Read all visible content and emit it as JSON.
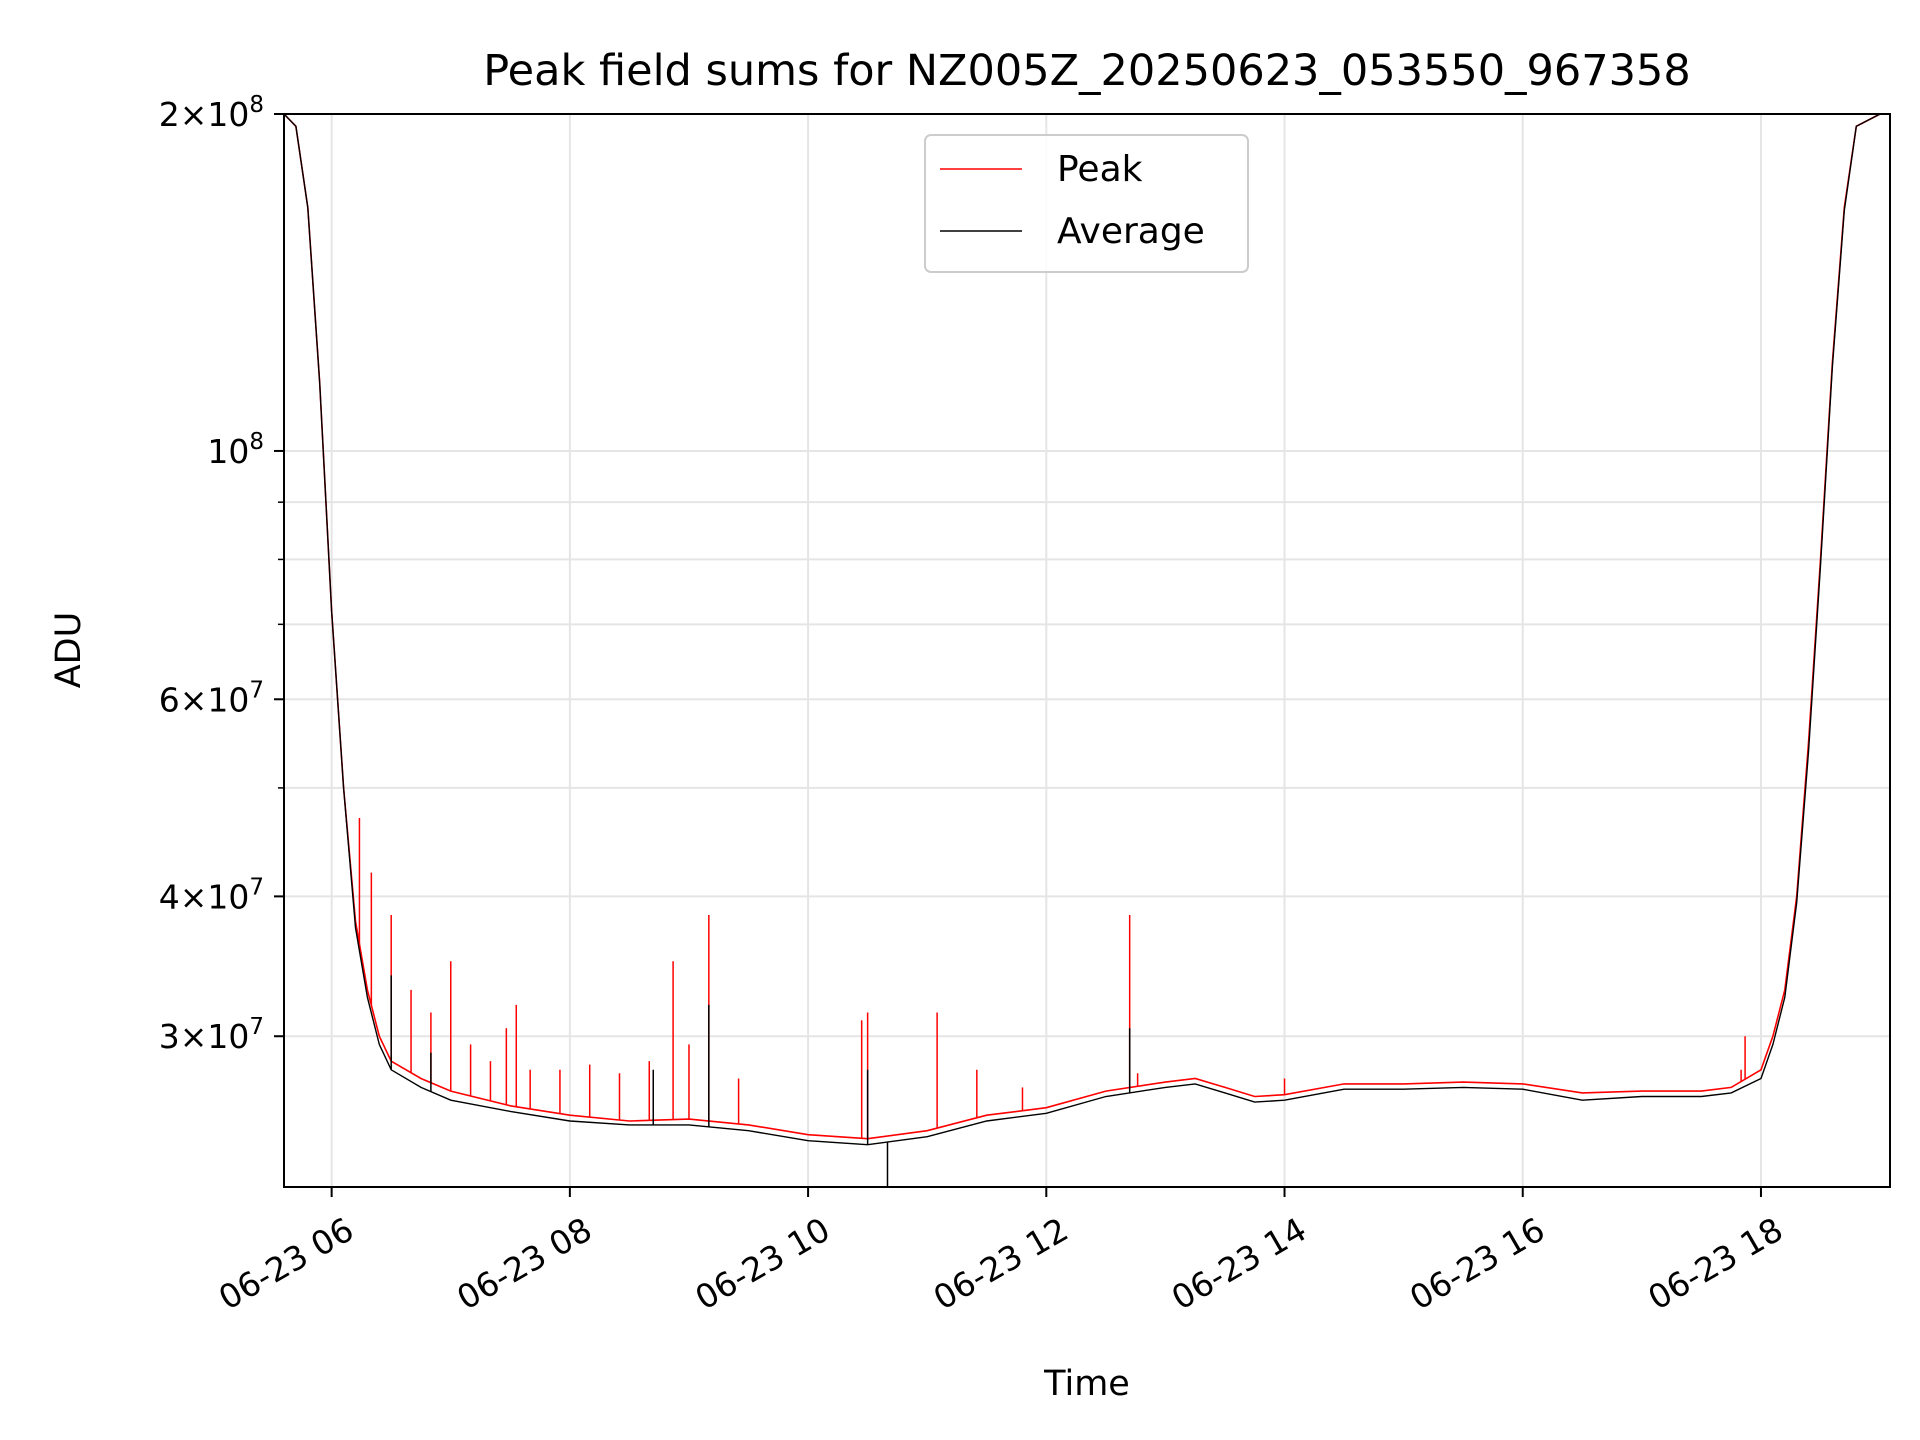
{
  "chart_data": {
    "type": "line",
    "title": "Peak field sums for NZ005Z_20250623_053550_967358",
    "xlabel": "Time",
    "ylabel": "ADU",
    "yscale": "log",
    "ylim": [
      22000000,
      200000000
    ],
    "xlim": [
      "2025-06-23 05:36",
      "2025-06-23 19:05"
    ],
    "grid": true,
    "legend_position": "upper center",
    "x_ticks": [
      "06-23 06",
      "06-23 08",
      "06-23 10",
      "06-23 12",
      "06-23 14",
      "06-23 16",
      "06-23 18"
    ],
    "y_ticks": [
      {
        "value": 200000000,
        "mantissa": "2",
        "exponent": "8"
      },
      {
        "value": 100000000,
        "mantissa": "",
        "exponent": "8"
      },
      {
        "value": 60000000,
        "mantissa": "6",
        "exponent": "7"
      },
      {
        "value": 40000000,
        "mantissa": "4",
        "exponent": "7"
      },
      {
        "value": 30000000,
        "mantissa": "3",
        "exponent": "7"
      }
    ],
    "series": [
      {
        "name": "Peak",
        "color": "#ff0000",
        "points": [
          [
            "2025-06-23 05:36",
            200000000
          ],
          [
            "2025-06-23 05:42",
            195000000
          ],
          [
            "2025-06-23 05:48",
            165000000
          ],
          [
            "2025-06-23 05:54",
            115000000
          ],
          [
            "2025-06-23 06:00",
            72000000
          ],
          [
            "2025-06-23 06:06",
            50000000
          ],
          [
            "2025-06-23 06:12",
            38000000
          ],
          [
            "2025-06-23 06:18",
            33000000
          ],
          [
            "2025-06-23 06:24",
            30000000
          ],
          [
            "2025-06-23 06:30",
            28500000
          ],
          [
            "2025-06-23 06:45",
            27500000
          ],
          [
            "2025-06-23 07:00",
            26800000
          ],
          [
            "2025-06-23 07:30",
            26000000
          ],
          [
            "2025-06-23 08:00",
            25500000
          ],
          [
            "2025-06-23 08:30",
            25200000
          ],
          [
            "2025-06-23 09:00",
            25300000
          ],
          [
            "2025-06-23 09:30",
            25000000
          ],
          [
            "2025-06-23 10:00",
            24500000
          ],
          [
            "2025-06-23 10:30",
            24300000
          ],
          [
            "2025-06-23 11:00",
            24700000
          ],
          [
            "2025-06-23 11:30",
            25500000
          ],
          [
            "2025-06-23 12:00",
            25900000
          ],
          [
            "2025-06-23 12:30",
            26800000
          ],
          [
            "2025-06-23 13:00",
            27300000
          ],
          [
            "2025-06-23 13:15",
            27500000
          ],
          [
            "2025-06-23 13:30",
            27000000
          ],
          [
            "2025-06-23 13:45",
            26500000
          ],
          [
            "2025-06-23 14:00",
            26600000
          ],
          [
            "2025-06-23 14:30",
            27200000
          ],
          [
            "2025-06-23 15:00",
            27200000
          ],
          [
            "2025-06-23 15:30",
            27300000
          ],
          [
            "2025-06-23 16:00",
            27200000
          ],
          [
            "2025-06-23 16:30",
            26700000
          ],
          [
            "2025-06-23 17:00",
            26800000
          ],
          [
            "2025-06-23 17:30",
            26800000
          ],
          [
            "2025-06-23 17:45",
            27000000
          ],
          [
            "2025-06-23 18:00",
            28000000
          ],
          [
            "2025-06-23 18:06",
            30000000
          ],
          [
            "2025-06-23 18:12",
            33000000
          ],
          [
            "2025-06-23 18:18",
            40000000
          ],
          [
            "2025-06-23 18:24",
            55000000
          ],
          [
            "2025-06-23 18:30",
            80000000
          ],
          [
            "2025-06-23 18:36",
            120000000
          ],
          [
            "2025-06-23 18:42",
            165000000
          ],
          [
            "2025-06-23 18:48",
            195000000
          ],
          [
            "2025-06-23 19:00",
            200000000
          ]
        ],
        "spikes": [
          [
            "2025-06-23 06:14",
            47000000
          ],
          [
            "2025-06-23 06:20",
            42000000
          ],
          [
            "2025-06-23 06:30",
            38500000
          ],
          [
            "2025-06-23 06:40",
            33000000
          ],
          [
            "2025-06-23 06:50",
            31500000
          ],
          [
            "2025-06-23 07:00",
            35000000
          ],
          [
            "2025-06-23 07:10",
            29500000
          ],
          [
            "2025-06-23 07:20",
            28500000
          ],
          [
            "2025-06-23 07:28",
            30500000
          ],
          [
            "2025-06-23 07:33",
            32000000
          ],
          [
            "2025-06-23 07:40",
            28000000
          ],
          [
            "2025-06-23 07:55",
            28000000
          ],
          [
            "2025-06-23 08:10",
            28300000
          ],
          [
            "2025-06-23 08:25",
            27800000
          ],
          [
            "2025-06-23 08:40",
            28500000
          ],
          [
            "2025-06-23 08:52",
            35000000
          ],
          [
            "2025-06-23 09:00",
            29500000
          ],
          [
            "2025-06-23 09:10",
            38500000
          ],
          [
            "2025-06-23 09:25",
            27500000
          ],
          [
            "2025-06-23 10:27",
            31000000
          ],
          [
            "2025-06-23 10:30",
            31500000
          ],
          [
            "2025-06-23 11:05",
            31500000
          ],
          [
            "2025-06-23 11:25",
            28000000
          ],
          [
            "2025-06-23 11:48",
            27000000
          ],
          [
            "2025-06-23 12:46",
            27800000
          ],
          [
            "2025-06-23 12:42",
            38500000
          ],
          [
            "2025-06-23 14:00",
            27500000
          ],
          [
            "2025-06-23 17:50",
            28000000
          ],
          [
            "2025-06-23 17:52",
            30000000
          ]
        ]
      },
      {
        "name": "Average",
        "color": "#000000",
        "points": [
          [
            "2025-06-23 05:36",
            200000000
          ],
          [
            "2025-06-23 05:42",
            195000000
          ],
          [
            "2025-06-23 05:48",
            165000000
          ],
          [
            "2025-06-23 05:54",
            115000000
          ],
          [
            "2025-06-23 06:00",
            72000000
          ],
          [
            "2025-06-23 06:06",
            50000000
          ],
          [
            "2025-06-23 06:12",
            37500000
          ],
          [
            "2025-06-23 06:18",
            32500000
          ],
          [
            "2025-06-23 06:24",
            29500000
          ],
          [
            "2025-06-23 06:30",
            28000000
          ],
          [
            "2025-06-23 06:45",
            27000000
          ],
          [
            "2025-06-23 07:00",
            26300000
          ],
          [
            "2025-06-23 07:30",
            25700000
          ],
          [
            "2025-06-23 08:00",
            25200000
          ],
          [
            "2025-06-23 08:30",
            25000000
          ],
          [
            "2025-06-23 09:00",
            25000000
          ],
          [
            "2025-06-23 09:30",
            24700000
          ],
          [
            "2025-06-23 10:00",
            24200000
          ],
          [
            "2025-06-23 10:30",
            24000000
          ],
          [
            "2025-06-23 11:00",
            24400000
          ],
          [
            "2025-06-23 11:30",
            25200000
          ],
          [
            "2025-06-23 12:00",
            25600000
          ],
          [
            "2025-06-23 12:30",
            26500000
          ],
          [
            "2025-06-23 13:00",
            27000000
          ],
          [
            "2025-06-23 13:15",
            27200000
          ],
          [
            "2025-06-23 13:30",
            26700000
          ],
          [
            "2025-06-23 13:45",
            26200000
          ],
          [
            "2025-06-23 14:00",
            26300000
          ],
          [
            "2025-06-23 14:30",
            26900000
          ],
          [
            "2025-06-23 15:00",
            26900000
          ],
          [
            "2025-06-23 15:30",
            27000000
          ],
          [
            "2025-06-23 16:00",
            26900000
          ],
          [
            "2025-06-23 16:30",
            26300000
          ],
          [
            "2025-06-23 17:00",
            26500000
          ],
          [
            "2025-06-23 17:30",
            26500000
          ],
          [
            "2025-06-23 17:45",
            26700000
          ],
          [
            "2025-06-23 18:00",
            27500000
          ],
          [
            "2025-06-23 18:06",
            29500000
          ],
          [
            "2025-06-23 18:12",
            32500000
          ],
          [
            "2025-06-23 18:18",
            39500000
          ],
          [
            "2025-06-23 18:24",
            54000000
          ],
          [
            "2025-06-23 18:30",
            79000000
          ],
          [
            "2025-06-23 18:36",
            119000000
          ],
          [
            "2025-06-23 18:42",
            164000000
          ],
          [
            "2025-06-23 18:48",
            195000000
          ],
          [
            "2025-06-23 19:00",
            200000000
          ]
        ],
        "spikes": [
          [
            "2025-06-23 06:30",
            34000000
          ],
          [
            "2025-06-23 06:50",
            29000000
          ],
          [
            "2025-06-23 08:42",
            28000000
          ],
          [
            "2025-06-23 09:10",
            32000000
          ],
          [
            "2025-06-23 10:30",
            28000000
          ],
          [
            "2025-06-23 12:42",
            30500000
          ],
          [
            "2025-06-23 10:40",
            22000000
          ]
        ]
      }
    ]
  }
}
